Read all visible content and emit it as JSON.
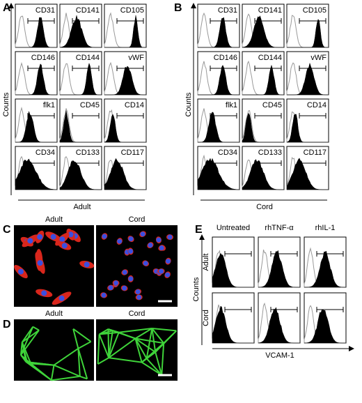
{
  "panels": [
    {
      "label": "A",
      "y_axis": "Counts",
      "x_axis": "Adult",
      "markers": [
        "CD31",
        "CD141",
        "CD105",
        "CD146",
        "CD144",
        "vWF",
        "flk1",
        "CD45",
        "CD14",
        "CD34",
        "CD133",
        "CD117"
      ]
    },
    {
      "label": "B",
      "y_axis": "Counts",
      "x_axis": "Cord",
      "markers": [
        "CD31",
        "CD141",
        "CD105",
        "CD146",
        "CD144",
        "vWF",
        "flk1",
        "CD45",
        "CD14",
        "CD34",
        "CD133",
        "CD117"
      ]
    },
    {
      "label": "C",
      "images": [
        "Adult",
        "Cord"
      ]
    },
    {
      "label": "D",
      "images": [
        "Adult",
        "Cord"
      ]
    },
    {
      "label": "E",
      "columns": [
        "Untreated",
        "rhTNF-α",
        "rhIL-1"
      ],
      "rows": [
        "Adult",
        "Cord"
      ],
      "y_axis": "Counts",
      "x_axis": "VCAM-1"
    }
  ]
}
